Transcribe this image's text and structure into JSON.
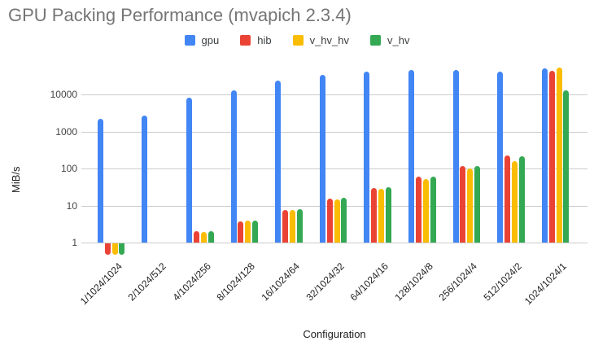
{
  "title": "GPU Packing Performance (mvapich 2.3.4)",
  "xlabel": "Configuration",
  "ylabel": "MiB/s",
  "colors": {
    "gpu": "#4285F4",
    "hib": "#EA4335",
    "v_hv_hv": "#FBBC04",
    "v_hv": "#34A853",
    "title_text": "#757575",
    "gridline": "#cccccc"
  },
  "chart_data": {
    "type": "bar",
    "title": "GPU Packing Performance (mvapich 2.3.4)",
    "xlabel": "Configuration",
    "ylabel": "MiB/s",
    "y_scale": "log",
    "y_ticks": [
      1,
      10,
      100,
      1000,
      10000
    ],
    "y_tick_labels": [
      "1",
      "10",
      "100",
      "1000",
      "10000"
    ],
    "ylim": [
      0.5,
      60000
    ],
    "grid": true,
    "legend_position": "top",
    "categories": [
      "1/1024/1024",
      "2/1024/512",
      "4/1024/256",
      "8/1024/128",
      "16/1024/64",
      "32/1024/32",
      "64/1024/16",
      "128/1024/8",
      "256/1024/4",
      "512/1024/2",
      "1024/1024/1"
    ],
    "series": [
      {
        "name": "gpu",
        "color": "#4285F4",
        "values": [
          2200,
          2700,
          8300,
          13000,
          24000,
          35000,
          42000,
          46000,
          46000,
          43000,
          52000
        ]
      },
      {
        "name": "hib",
        "color": "#EA4335",
        "values": [
          0.5,
          null,
          2.0,
          3.8,
          7.5,
          15.5,
          30,
          60,
          120,
          230,
          44000
        ]
      },
      {
        "name": "v_hv_hv",
        "color": "#FBBC04",
        "values": [
          0.5,
          null,
          1.9,
          3.9,
          7.5,
          14.5,
          29,
          52,
          100,
          160,
          55000
        ]
      },
      {
        "name": "v_hv",
        "color": "#34A853",
        "values": [
          0.5,
          null,
          2.0,
          4.0,
          7.8,
          16,
          31,
          62,
          120,
          220,
          13000
        ]
      }
    ]
  }
}
